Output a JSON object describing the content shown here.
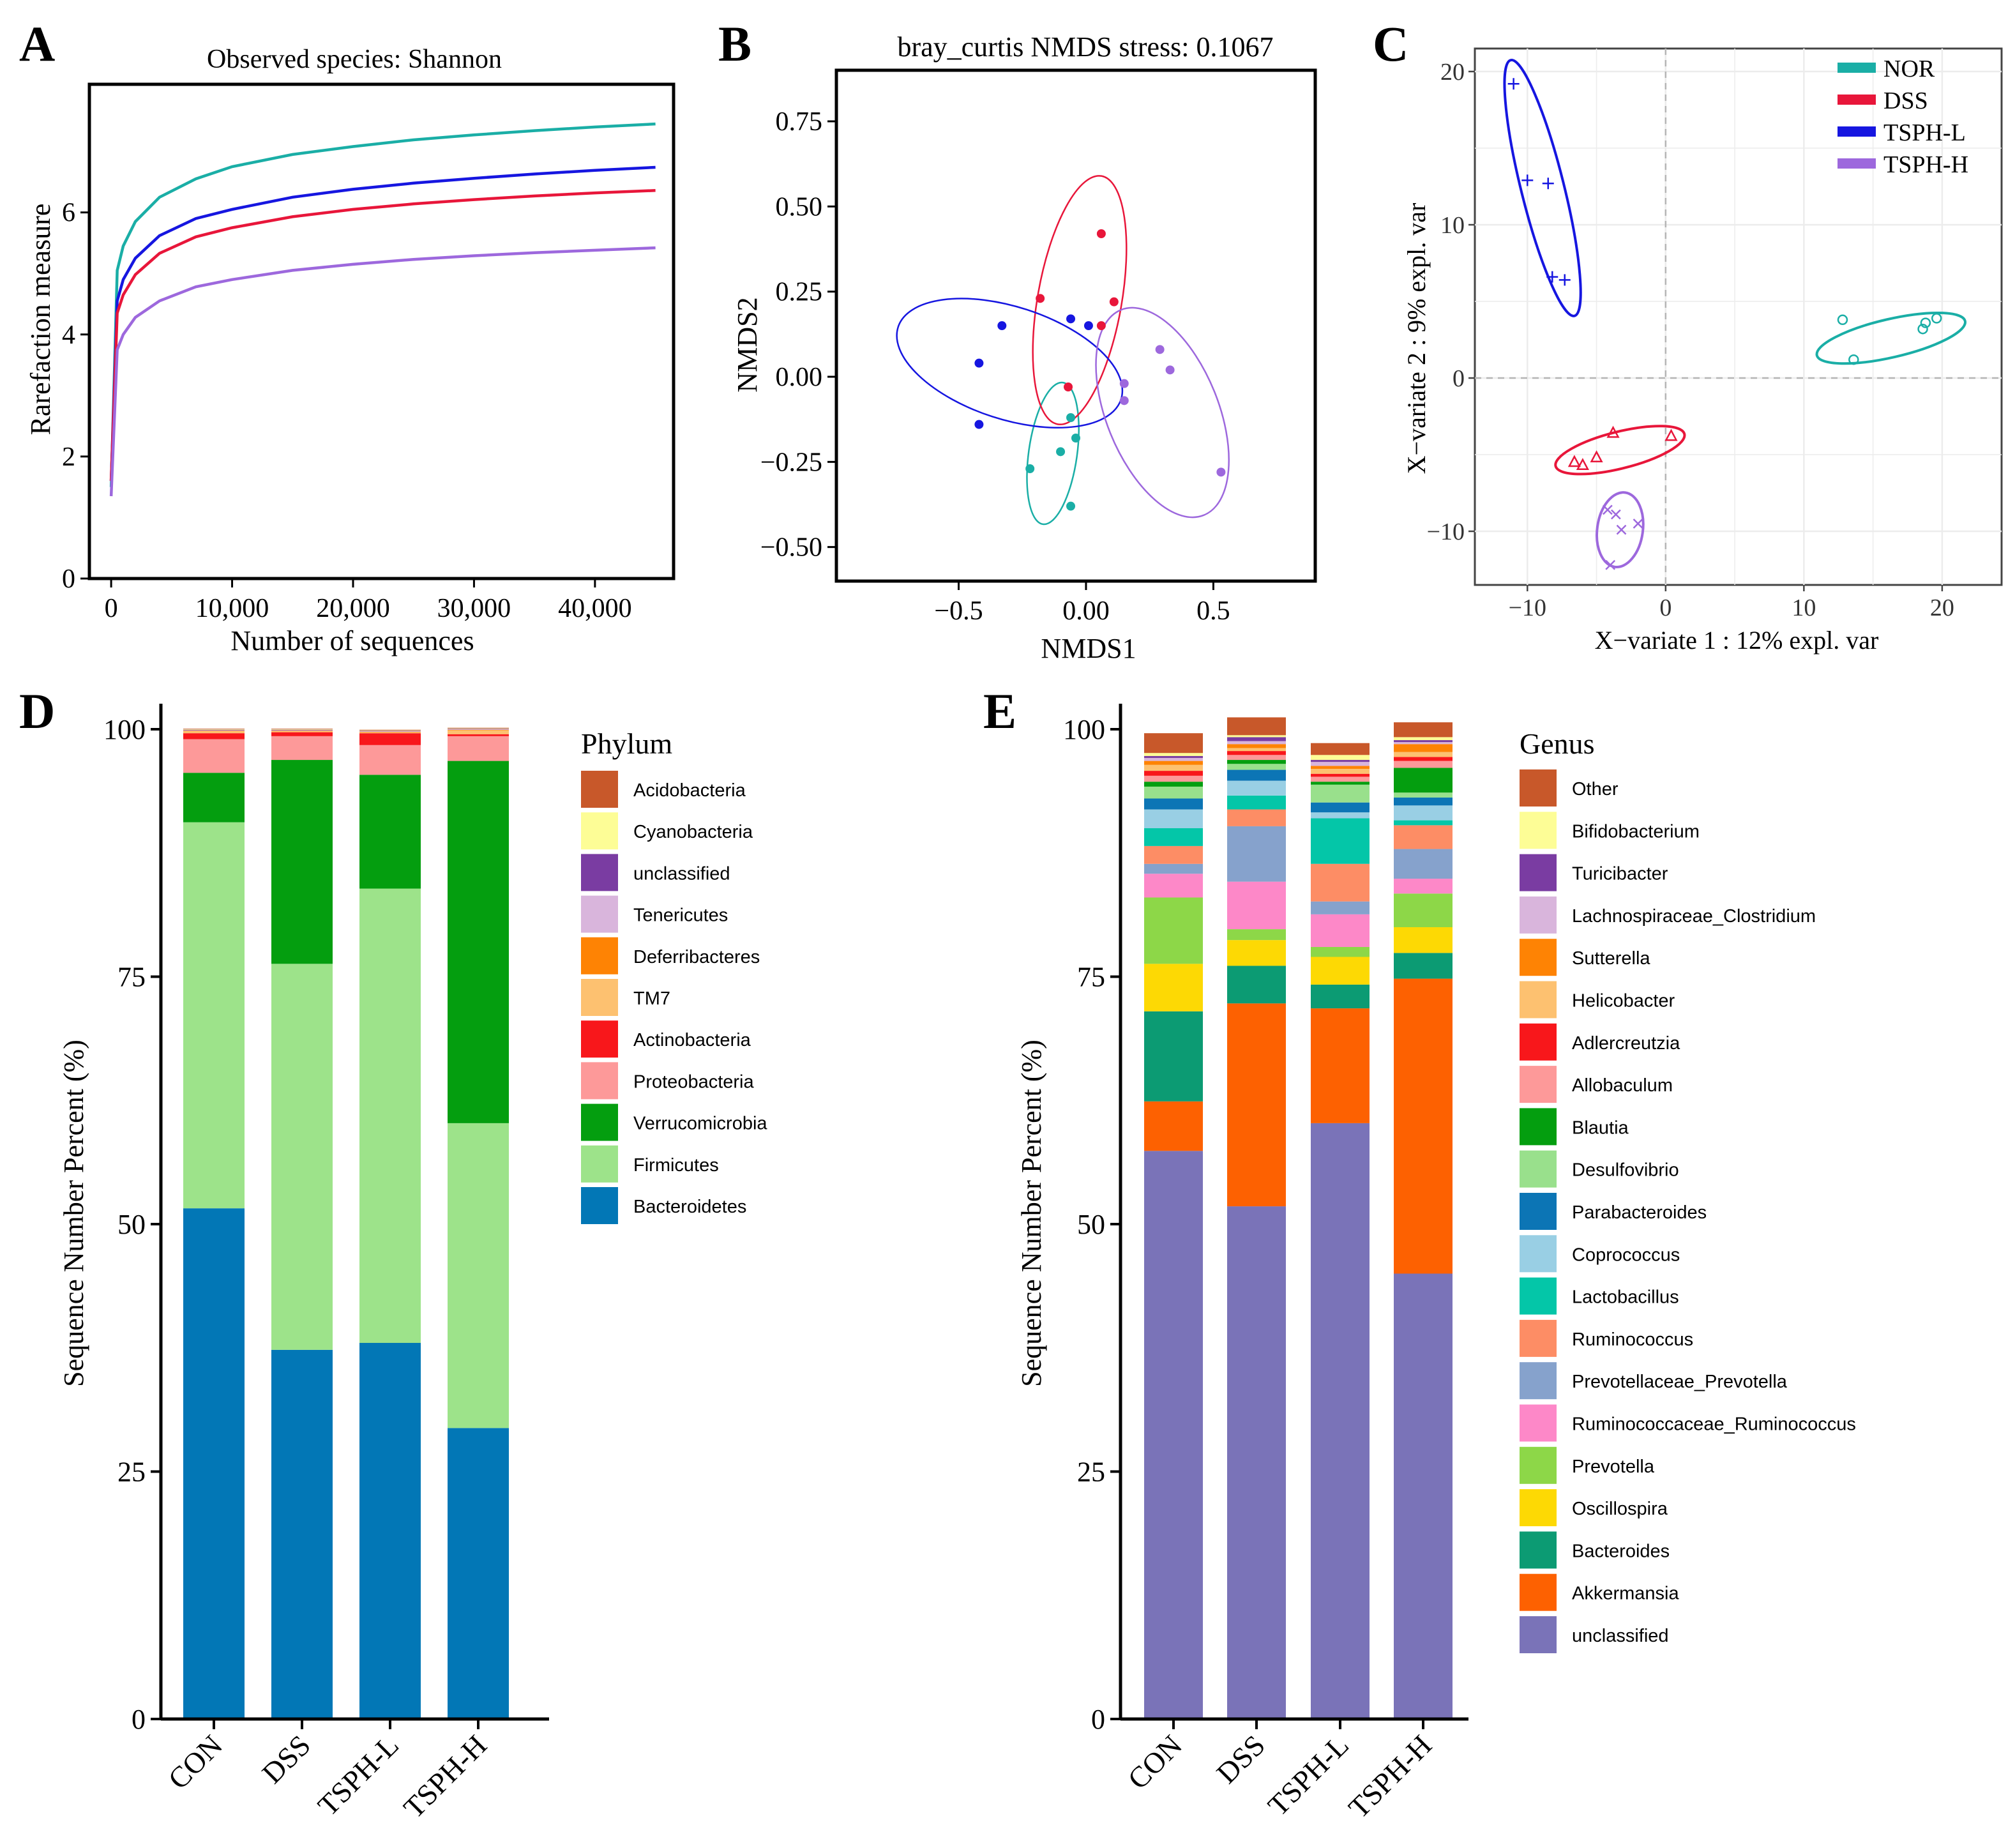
{
  "colors": {
    "NOR": "#1aaea6",
    "DSS": "#e8163a",
    "TSPH-L": "#1616e0",
    "TSPH-H": "#9d68dd"
  },
  "panels": {
    "A": {
      "letter": "A"
    },
    "B": {
      "letter": "B"
    },
    "C": {
      "letter": "C"
    },
    "D": {
      "letter": "D"
    },
    "E": {
      "letter": "E"
    }
  },
  "chart_data": [
    {
      "id": "A",
      "type": "line",
      "title": "Observed species: Shannon",
      "xlabel": "Number of sequences",
      "ylabel": "Rarefaction measure",
      "xlim": [
        -1800,
        46500
      ],
      "ylim": [
        0,
        8.1
      ],
      "xticks": [
        0,
        10000,
        20000,
        30000,
        40000
      ],
      "xtick_labels": [
        "0",
        "10,000",
        "20,000",
        "30,000",
        "40,000"
      ],
      "yticks": [
        0,
        2,
        4,
        6
      ],
      "ytick_labels": [
        "0",
        "2",
        "4",
        "6"
      ],
      "series": [
        {
          "name": "NOR",
          "color": "#1aaea6",
          "x": [
            0,
            500,
            1000,
            2000,
            4000,
            7000,
            10000,
            15000,
            20000,
            25000,
            30000,
            35000,
            40000,
            45000
          ],
          "y": [
            1.5,
            5.05,
            5.45,
            5.85,
            6.25,
            6.55,
            6.75,
            6.95,
            7.08,
            7.19,
            7.27,
            7.34,
            7.4,
            7.45
          ]
        },
        {
          "name": "TSPH-L",
          "color": "#1616e0",
          "x": [
            0,
            500,
            1000,
            2000,
            4000,
            7000,
            10000,
            15000,
            20000,
            25000,
            30000,
            35000,
            40000,
            45000
          ],
          "y": [
            1.6,
            4.55,
            4.9,
            5.25,
            5.62,
            5.9,
            6.05,
            6.25,
            6.38,
            6.48,
            6.56,
            6.63,
            6.69,
            6.74
          ]
        },
        {
          "name": "DSS",
          "color": "#e8163a",
          "x": [
            0,
            500,
            1000,
            2000,
            4000,
            7000,
            10000,
            15000,
            20000,
            25000,
            30000,
            35000,
            40000,
            45000
          ],
          "y": [
            1.6,
            4.35,
            4.65,
            4.98,
            5.33,
            5.6,
            5.75,
            5.93,
            6.05,
            6.14,
            6.21,
            6.27,
            6.32,
            6.36
          ]
        },
        {
          "name": "TSPH-H",
          "color": "#9d68dd",
          "x": [
            0,
            500,
            1000,
            2000,
            4000,
            7000,
            10000,
            15000,
            20000,
            25000,
            30000,
            35000,
            40000,
            45000
          ],
          "y": [
            1.35,
            3.75,
            4.0,
            4.28,
            4.55,
            4.78,
            4.9,
            5.05,
            5.15,
            5.23,
            5.29,
            5.34,
            5.38,
            5.42
          ]
        }
      ]
    },
    {
      "id": "B",
      "type": "scatter",
      "title": "bray_curtis NMDS stress: 0.1067",
      "xlabel": "NMDS1",
      "ylabel": "NMDS2",
      "xlim": [
        -0.98,
        0.9
      ],
      "ylim": [
        -0.6,
        0.9
      ],
      "xticks": [
        -0.5,
        0,
        0.5
      ],
      "xtick_labels": [
        "−0.5",
        "0.00",
        "0.5"
      ],
      "yticks": [
        0.75,
        0.5,
        0.25,
        0,
        -0.25,
        -0.5
      ],
      "ytick_labels": [
        "0.75",
        "0.50",
        "0.25",
        "0.00",
        "−0.25",
        "−0.50"
      ],
      "series": [
        {
          "name": "NOR",
          "color": "#1aaea6",
          "points": [
            [
              -0.06,
              -0.12
            ],
            [
              -0.04,
              -0.18
            ],
            [
              -0.22,
              -0.27
            ],
            [
              -0.1,
              -0.22
            ],
            [
              -0.06,
              -0.38
            ]
          ],
          "ellipse": {
            "cx": -0.13,
            "cy": -0.225,
            "rx": 0.095,
            "ry": 0.21,
            "rot": 8
          }
        },
        {
          "name": "DSS",
          "color": "#e8163a",
          "points": [
            [
              0.06,
              0.42
            ],
            [
              -0.18,
              0.23
            ],
            [
              0.11,
              0.22
            ],
            [
              0.06,
              0.15
            ],
            [
              -0.07,
              -0.03
            ]
          ],
          "ellipse": {
            "cx": -0.025,
            "cy": 0.225,
            "rx": 0.165,
            "ry": 0.37,
            "rot": 10
          }
        },
        {
          "name": "TSPH-L",
          "color": "#1616e0",
          "points": [
            [
              -0.33,
              0.15
            ],
            [
              -0.42,
              0.04
            ],
            [
              -0.42,
              -0.14
            ],
            [
              -0.06,
              0.17
            ],
            [
              0.01,
              0.15
            ]
          ],
          "ellipse": {
            "cx": -0.3,
            "cy": 0.04,
            "rx": 0.46,
            "ry": 0.165,
            "rot": 18
          }
        },
        {
          "name": "TSPH-H",
          "color": "#9d68dd",
          "points": [
            [
              0.29,
              0.08
            ],
            [
              0.33,
              0.02
            ],
            [
              0.15,
              -0.02
            ],
            [
              0.15,
              -0.07
            ],
            [
              0.53,
              -0.28
            ]
          ],
          "ellipse": {
            "cx": 0.3,
            "cy": -0.105,
            "rx": 0.22,
            "ry": 0.325,
            "rot": -22
          }
        }
      ]
    },
    {
      "id": "C",
      "type": "scatter",
      "title": "",
      "xlabel": "X−variate 1 : 12% expl. var",
      "ylabel": "X−variate 2 : 9% expl. var",
      "xlim": [
        -13.8,
        24.3
      ],
      "ylim": [
        -13.5,
        21.5
      ],
      "xticks": [
        -10,
        0,
        10,
        20
      ],
      "xtick_labels": [
        "−10",
        "0",
        "10",
        "20"
      ],
      "yticks": [
        20,
        10,
        0,
        -10
      ],
      "ytick_labels": [
        "20",
        "10",
        "0",
        "−10"
      ],
      "series": [
        {
          "name": "NOR",
          "color": "#1aaea6",
          "marker": "circle",
          "points": [
            [
              12.8,
              3.8
            ],
            [
              13.6,
              1.2
            ],
            [
              18.6,
              3.2
            ],
            [
              18.8,
              3.6
            ],
            [
              19.6,
              3.9
            ]
          ],
          "ellipse": {
            "cx": 16.3,
            "cy": 2.6,
            "rx": 5.5,
            "ry": 1.25,
            "rot": -13
          }
        },
        {
          "name": "DSS",
          "color": "#e8163a",
          "marker": "triangle",
          "points": [
            [
              -3.8,
              -3.6
            ],
            [
              0.4,
              -3.8
            ],
            [
              -5.0,
              -5.2
            ],
            [
              -6.6,
              -5.5
            ],
            [
              -6.0,
              -5.7
            ]
          ],
          "ellipse": {
            "cx": -3.3,
            "cy": -4.7,
            "rx": 4.8,
            "ry": 1.2,
            "rot": -14
          }
        },
        {
          "name": "TSPH-L",
          "color": "#1616e0",
          "marker": "plus",
          "points": [
            [
              -11.0,
              19.2
            ],
            [
              -10.0,
              12.9
            ],
            [
              -8.5,
              12.7
            ],
            [
              -8.2,
              6.6
            ],
            [
              -7.3,
              6.4
            ]
          ],
          "ellipse": {
            "cx": -8.9,
            "cy": 12.4,
            "rx": 1.55,
            "ry": 8.6,
            "rot": -14
          }
        },
        {
          "name": "TSPH-H",
          "color": "#9d68dd",
          "marker": "cross",
          "points": [
            [
              -4.2,
              -8.6
            ],
            [
              -3.6,
              -8.9
            ],
            [
              -3.2,
              -9.9
            ],
            [
              -2.0,
              -9.5
            ],
            [
              -4.0,
              -12.2
            ]
          ],
          "ellipse": {
            "cx": -3.3,
            "cy": -9.9,
            "rx": 1.65,
            "ry": 2.45,
            "rot": 8
          }
        }
      ],
      "legend": [
        "NOR",
        "DSS",
        "TSPH-L",
        "TSPH-H"
      ]
    },
    {
      "id": "D",
      "type": "bar",
      "stacked": true,
      "ylabel": "Sequence Number Percent (%)",
      "ylim": [
        0,
        100
      ],
      "yticks": [
        0,
        25,
        50,
        75,
        100
      ],
      "ytick_labels": [
        "0",
        "25",
        "50",
        "75",
        "100"
      ],
      "categories": [
        "CON",
        "DSS",
        "TSPH-L",
        "TSPH-H"
      ],
      "legend_title": "Phylum",
      "series": [
        {
          "name": "Bacteroidetes",
          "color": "#0277b6",
          "values": [
            51.6,
            37.3,
            38.0,
            29.4
          ]
        },
        {
          "name": "Firmicutes",
          "color": "#9de38a",
          "values": [
            39.0,
            39.0,
            45.9,
            30.8
          ]
        },
        {
          "name": "Verrucomicrobia",
          "color": "#049e0f",
          "values": [
            5.0,
            20.6,
            11.5,
            36.6
          ]
        },
        {
          "name": "Proteobacteria",
          "color": "#fd9999",
          "values": [
            3.4,
            2.4,
            3.0,
            2.5
          ]
        },
        {
          "name": "Actinobacteria",
          "color": "#f8171b",
          "values": [
            0.6,
            0.4,
            1.2,
            0.2
          ]
        },
        {
          "name": "TM7",
          "color": "#fdc170",
          "values": [
            0.2,
            0.1,
            0.1,
            0.4
          ]
        },
        {
          "name": "Deferribacteres",
          "color": "#fe8304",
          "values": [
            0.05,
            0.05,
            0.05,
            0.05
          ]
        },
        {
          "name": "Tenericutes",
          "color": "#d9b5dc",
          "values": [
            0.05,
            0.05,
            0.05,
            0.05
          ]
        },
        {
          "name": "unclassified",
          "color": "#7a3ca2",
          "values": [
            0.05,
            0.05,
            0.05,
            0.05
          ]
        },
        {
          "name": "Cyanobacteria",
          "color": "#fdfd96",
          "values": [
            0.05,
            0.05,
            0.05,
            0.05
          ]
        },
        {
          "name": "Acidobacteria",
          "color": "#c8582a",
          "values": [
            0.05,
            0.05,
            0.05,
            0.05
          ]
        }
      ]
    },
    {
      "id": "E",
      "type": "bar",
      "stacked": true,
      "ylabel": "Sequence Number Percent (%)",
      "ylim": [
        0,
        100
      ],
      "yticks": [
        0,
        25,
        50,
        75,
        100
      ],
      "ytick_labels": [
        "0",
        "25",
        "50",
        "75",
        "100"
      ],
      "categories": [
        "CON",
        "DSS",
        "TSPH-L",
        "TSPH-H"
      ],
      "legend_title": "Genus",
      "series": [
        {
          "name": "unclassified",
          "color": "#7a73b8",
          "values": [
            57.4,
            51.8,
            60.2,
            45.0
          ]
        },
        {
          "name": "Akkermansia",
          "color": "#fd6101",
          "values": [
            5.0,
            20.5,
            11.6,
            29.8
          ]
        },
        {
          "name": "Bacteroides",
          "color": "#0c9b73",
          "values": [
            9.1,
            3.8,
            2.4,
            2.6
          ]
        },
        {
          "name": "Oscillospira",
          "color": "#fdd904",
          "values": [
            4.8,
            2.6,
            2.8,
            2.6
          ]
        },
        {
          "name": "Prevotella",
          "color": "#8dd748",
          "values": [
            6.7,
            1.1,
            1.0,
            3.4
          ]
        },
        {
          "name": "Ruminococcaceae_Ruminococcus",
          "color": "#fd88c8",
          "values": [
            2.4,
            4.8,
            3.3,
            1.5
          ]
        },
        {
          "name": "Prevotellaceae_Prevotella",
          "color": "#86a2cc",
          "values": [
            1.0,
            5.6,
            1.3,
            3.0
          ]
        },
        {
          "name": "Ruminococcus",
          "color": "#fd8d65",
          "values": [
            1.8,
            1.7,
            3.8,
            2.4
          ]
        },
        {
          "name": "Lactobacillus",
          "color": "#04c6a8",
          "values": [
            1.8,
            1.4,
            4.6,
            0.5
          ]
        },
        {
          "name": "Coprococcus",
          "color": "#99cfe4",
          "values": [
            1.9,
            1.5,
            0.6,
            1.5
          ]
        },
        {
          "name": "Parabacteroides",
          "color": "#0c75b5",
          "values": [
            1.1,
            1.1,
            1.0,
            0.8
          ]
        },
        {
          "name": "Desulfovibrio",
          "color": "#99e08c",
          "values": [
            1.2,
            0.6,
            1.8,
            0.5
          ]
        },
        {
          "name": "Blautia",
          "color": "#049e0f",
          "values": [
            0.5,
            0.4,
            0.3,
            2.5
          ]
        },
        {
          "name": "Allobaculum",
          "color": "#fd9999",
          "values": [
            0.6,
            0.5,
            0.5,
            0.7
          ]
        },
        {
          "name": "Adlercreutzia",
          "color": "#f8171b",
          "values": [
            0.5,
            0.4,
            0.3,
            0.4
          ]
        },
        {
          "name": "Helicobacter",
          "color": "#fdc170",
          "values": [
            0.6,
            0.3,
            0.5,
            0.5
          ]
        },
        {
          "name": "Sutterella",
          "color": "#fe8304",
          "values": [
            0.4,
            0.4,
            0.3,
            0.8
          ]
        },
        {
          "name": "Lachnospiraceae_Clostridium",
          "color": "#d9b5dc",
          "values": [
            0.3,
            0.3,
            0.4,
            0.2
          ]
        },
        {
          "name": "Turicibacter",
          "color": "#7a3ca2",
          "values": [
            0.2,
            0.4,
            0.2,
            0.2
          ]
        },
        {
          "name": "Bifidobacterium",
          "color": "#fdfd96",
          "values": [
            0.3,
            0.2,
            0.5,
            0.3
          ]
        },
        {
          "name": "Other",
          "color": "#c8582a",
          "values": [
            2.0,
            1.8,
            1.2,
            1.5
          ]
        }
      ]
    }
  ]
}
